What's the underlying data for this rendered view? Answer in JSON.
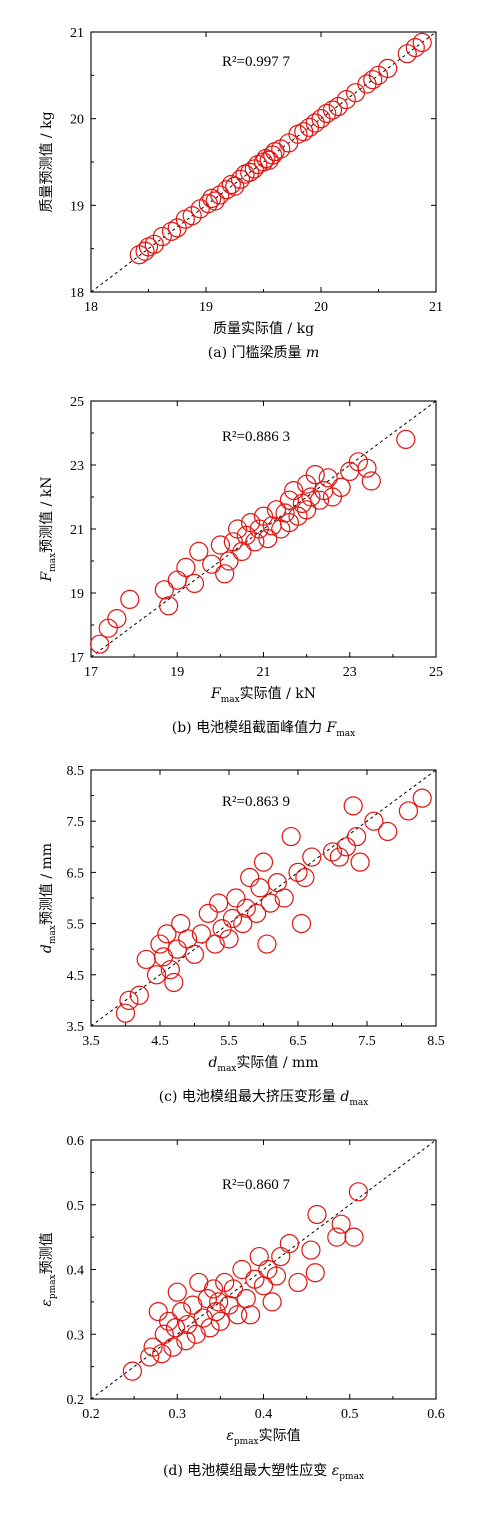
{
  "chart_data": [
    {
      "type": "scatter",
      "caption": {
        "tag": "(a)",
        "text": "门槛梁质量",
        "symbol": "m",
        "symbol_sub": ""
      },
      "xlabel": {
        "sym": "",
        "sub": "",
        "text": "质量实际值 / kg"
      },
      "ylabel": {
        "sym": "",
        "sub": "",
        "text": "质量预测值 / kg"
      },
      "r2_label": "R²=0.997 7",
      "xlim": [
        18,
        21
      ],
      "ylim": [
        18,
        21
      ],
      "xticks": [
        18,
        19,
        20,
        21
      ],
      "yticks": [
        18,
        19,
        20,
        21
      ],
      "xtick_labels": [
        "18",
        "19",
        "20",
        "21"
      ],
      "ytick_labels": [
        "18",
        "19",
        "20",
        "21"
      ],
      "reference_line": "y = x (dashed)",
      "marker": {
        "shape": "open circle",
        "color": "#e3130f"
      },
      "points": [
        [
          18.42,
          18.43
        ],
        [
          18.47,
          18.47
        ],
        [
          18.5,
          18.52
        ],
        [
          18.55,
          18.55
        ],
        [
          18.62,
          18.64
        ],
        [
          18.7,
          18.7
        ],
        [
          18.75,
          18.74
        ],
        [
          18.82,
          18.84
        ],
        [
          18.88,
          18.88
        ],
        [
          18.95,
          18.96
        ],
        [
          19.02,
          19.02
        ],
        [
          19.05,
          19.08
        ],
        [
          19.08,
          19.05
        ],
        [
          19.12,
          19.12
        ],
        [
          19.18,
          19.18
        ],
        [
          19.22,
          19.24
        ],
        [
          19.25,
          19.22
        ],
        [
          19.3,
          19.3
        ],
        [
          19.34,
          19.36
        ],
        [
          19.38,
          19.38
        ],
        [
          19.42,
          19.42
        ],
        [
          19.45,
          19.47
        ],
        [
          19.5,
          19.5
        ],
        [
          19.52,
          19.54
        ],
        [
          19.55,
          19.52
        ],
        [
          19.58,
          19.58
        ],
        [
          19.6,
          19.62
        ],
        [
          19.65,
          19.65
        ],
        [
          19.72,
          19.72
        ],
        [
          19.8,
          19.82
        ],
        [
          19.85,
          19.85
        ],
        [
          19.9,
          19.9
        ],
        [
          19.95,
          19.95
        ],
        [
          20.0,
          20.0
        ],
        [
          20.05,
          20.06
        ],
        [
          20.1,
          20.1
        ],
        [
          20.15,
          20.14
        ],
        [
          20.22,
          20.22
        ],
        [
          20.3,
          20.3
        ],
        [
          20.4,
          20.4
        ],
        [
          20.45,
          20.45
        ],
        [
          20.5,
          20.5
        ],
        [
          20.58,
          20.58
        ],
        [
          20.75,
          20.75
        ],
        [
          20.82,
          20.82
        ],
        [
          20.88,
          20.88
        ]
      ]
    },
    {
      "type": "scatter",
      "caption": {
        "tag": "(b)",
        "text": "电池模组截面峰值力",
        "symbol": "F",
        "symbol_sub": "max"
      },
      "xlabel": {
        "sym": "F",
        "sub": "max",
        "text": "实际值 / kN"
      },
      "ylabel": {
        "sym": "F",
        "sub": "max",
        "text": "预测值 / kN"
      },
      "r2_label": "R²=0.886 3",
      "xlim": [
        17,
        25
      ],
      "ylim": [
        17,
        25
      ],
      "xticks": [
        17,
        19,
        21,
        23,
        25
      ],
      "yticks": [
        17,
        19,
        21,
        23,
        25
      ],
      "xtick_labels": [
        "17",
        "19",
        "21",
        "23",
        "25"
      ],
      "ytick_labels": [
        "17",
        "19",
        "21",
        "23",
        "25"
      ],
      "reference_line": "y = x (dashed)",
      "marker": {
        "shape": "open circle",
        "color": "#e3130f"
      },
      "points": [
        [
          17.2,
          17.4
        ],
        [
          17.4,
          17.9
        ],
        [
          17.6,
          18.2
        ],
        [
          17.9,
          18.8
        ],
        [
          18.7,
          19.1
        ],
        [
          18.8,
          18.6
        ],
        [
          19.0,
          19.4
        ],
        [
          19.2,
          19.8
        ],
        [
          19.4,
          19.3
        ],
        [
          19.5,
          20.3
        ],
        [
          19.8,
          19.9
        ],
        [
          20.0,
          20.5
        ],
        [
          20.1,
          19.6
        ],
        [
          20.2,
          20.0
        ],
        [
          20.3,
          20.6
        ],
        [
          20.4,
          21.0
        ],
        [
          20.5,
          20.3
        ],
        [
          20.6,
          20.8
        ],
        [
          20.7,
          21.2
        ],
        [
          20.8,
          20.6
        ],
        [
          20.9,
          21.0
        ],
        [
          21.0,
          21.4
        ],
        [
          21.1,
          20.7
        ],
        [
          21.2,
          21.1
        ],
        [
          21.3,
          21.6
        ],
        [
          21.4,
          21.0
        ],
        [
          21.5,
          21.5
        ],
        [
          21.6,
          21.9
        ],
        [
          21.6,
          21.2
        ],
        [
          21.7,
          22.2
        ],
        [
          21.8,
          21.4
        ],
        [
          21.9,
          21.8
        ],
        [
          22.0,
          22.4
        ],
        [
          22.0,
          21.6
        ],
        [
          22.1,
          22.0
        ],
        [
          22.2,
          22.7
        ],
        [
          22.3,
          21.9
        ],
        [
          22.4,
          22.2
        ],
        [
          22.5,
          22.6
        ],
        [
          22.6,
          22.0
        ],
        [
          22.8,
          22.3
        ],
        [
          23.0,
          22.8
        ],
        [
          23.2,
          23.1
        ],
        [
          23.4,
          22.9
        ],
        [
          23.5,
          22.5
        ],
        [
          24.3,
          23.8
        ]
      ]
    },
    {
      "type": "scatter",
      "caption": {
        "tag": "(c)",
        "text": "电池模组最大挤压变形量",
        "symbol": "d",
        "symbol_sub": "max"
      },
      "xlabel": {
        "sym": "d",
        "sub": "max",
        "text": "实际值 / mm"
      },
      "ylabel": {
        "sym": "d",
        "sub": "max",
        "text": "预测值 / mm"
      },
      "r2_label": "R²=0.863 9",
      "xlim": [
        3.5,
        8.5
      ],
      "ylim": [
        3.5,
        8.5
      ],
      "xticks": [
        3.5,
        4.5,
        5.5,
        6.5,
        7.5,
        8.5
      ],
      "yticks": [
        3.5,
        4.5,
        5.5,
        6.5,
        7.5,
        8.5
      ],
      "xtick_labels": [
        "3.5",
        "4.5",
        "5.5",
        "6.5",
        "7.5",
        "8.5"
      ],
      "ytick_labels": [
        "3.5",
        "4.5",
        "5.5",
        "6.5",
        "7.5",
        "8.5"
      ],
      "reference_line": "y = x (dashed)",
      "marker": {
        "shape": "open circle",
        "color": "#e3130f"
      },
      "points": [
        [
          4.0,
          3.75
        ],
        [
          4.05,
          4.0
        ],
        [
          4.2,
          4.1
        ],
        [
          4.3,
          4.8
        ],
        [
          4.45,
          4.5
        ],
        [
          4.5,
          5.1
        ],
        [
          4.55,
          4.85
        ],
        [
          4.6,
          5.3
        ],
        [
          4.65,
          4.6
        ],
        [
          4.7,
          4.35
        ],
        [
          4.75,
          5.0
        ],
        [
          4.8,
          5.5
        ],
        [
          4.9,
          5.2
        ],
        [
          5.0,
          4.9
        ],
        [
          5.1,
          5.3
        ],
        [
          5.2,
          5.7
        ],
        [
          5.3,
          5.1
        ],
        [
          5.35,
          5.9
        ],
        [
          5.4,
          5.4
        ],
        [
          5.5,
          5.2
        ],
        [
          5.55,
          5.6
        ],
        [
          5.6,
          6.0
        ],
        [
          5.7,
          5.5
        ],
        [
          5.75,
          5.8
        ],
        [
          5.8,
          6.4
        ],
        [
          5.9,
          5.7
        ],
        [
          5.95,
          6.2
        ],
        [
          6.0,
          6.7
        ],
        [
          6.05,
          5.1
        ],
        [
          6.1,
          5.9
        ],
        [
          6.2,
          6.3
        ],
        [
          6.3,
          6.0
        ],
        [
          6.4,
          7.2
        ],
        [
          6.5,
          6.5
        ],
        [
          6.55,
          5.5
        ],
        [
          6.6,
          6.4
        ],
        [
          6.7,
          6.8
        ],
        [
          7.0,
          6.9
        ],
        [
          7.1,
          6.8
        ],
        [
          7.2,
          7.0
        ],
        [
          7.3,
          7.8
        ],
        [
          7.35,
          7.2
        ],
        [
          7.4,
          6.7
        ],
        [
          7.6,
          7.5
        ],
        [
          7.8,
          7.3
        ],
        [
          8.1,
          7.7
        ],
        [
          8.3,
          7.95
        ]
      ]
    },
    {
      "type": "scatter",
      "caption": {
        "tag": "(d)",
        "text": "电池模组最大塑性应变",
        "symbol": "ε",
        "symbol_sub": "pmax"
      },
      "xlabel": {
        "sym": "ε",
        "sub": "pmax",
        "text": "实际值"
      },
      "ylabel": {
        "sym": "ε",
        "sub": "pmax",
        "text": "预测值"
      },
      "r2_label": "R²=0.860 7",
      "xlim": [
        0.2,
        0.6
      ],
      "ylim": [
        0.2,
        0.6
      ],
      "xticks": [
        0.2,
        0.3,
        0.4,
        0.5,
        0.6
      ],
      "yticks": [
        0.2,
        0.3,
        0.4,
        0.5,
        0.6
      ],
      "xtick_labels": [
        "0.2",
        "0.3",
        "0.4",
        "0.5",
        "0.6"
      ],
      "ytick_labels": [
        "0.2",
        "0.3",
        "0.4",
        "0.5",
        "0.6"
      ],
      "reference_line": "y = x (dashed)",
      "marker": {
        "shape": "open circle",
        "color": "#e3130f"
      },
      "points": [
        [
          0.248,
          0.243
        ],
        [
          0.268,
          0.265
        ],
        [
          0.272,
          0.28
        ],
        [
          0.278,
          0.335
        ],
        [
          0.282,
          0.27
        ],
        [
          0.285,
          0.3
        ],
        [
          0.29,
          0.32
        ],
        [
          0.295,
          0.28
        ],
        [
          0.298,
          0.31
        ],
        [
          0.3,
          0.365
        ],
        [
          0.305,
          0.335
        ],
        [
          0.31,
          0.29
        ],
        [
          0.312,
          0.315
        ],
        [
          0.318,
          0.345
        ],
        [
          0.322,
          0.3
        ],
        [
          0.325,
          0.38
        ],
        [
          0.33,
          0.325
        ],
        [
          0.335,
          0.355
        ],
        [
          0.338,
          0.31
        ],
        [
          0.342,
          0.37
        ],
        [
          0.345,
          0.335
        ],
        [
          0.348,
          0.35
        ],
        [
          0.35,
          0.32
        ],
        [
          0.355,
          0.38
        ],
        [
          0.36,
          0.345
        ],
        [
          0.365,
          0.37
        ],
        [
          0.37,
          0.33
        ],
        [
          0.375,
          0.4
        ],
        [
          0.38,
          0.355
        ],
        [
          0.385,
          0.33
        ],
        [
          0.39,
          0.385
        ],
        [
          0.395,
          0.42
        ],
        [
          0.4,
          0.375
        ],
        [
          0.405,
          0.4
        ],
        [
          0.41,
          0.35
        ],
        [
          0.415,
          0.39
        ],
        [
          0.42,
          0.42
        ],
        [
          0.43,
          0.44
        ],
        [
          0.44,
          0.38
        ],
        [
          0.455,
          0.43
        ],
        [
          0.46,
          0.395
        ],
        [
          0.462,
          0.485
        ],
        [
          0.485,
          0.45
        ],
        [
          0.49,
          0.47
        ],
        [
          0.505,
          0.45
        ],
        [
          0.51,
          0.52
        ]
      ]
    }
  ]
}
